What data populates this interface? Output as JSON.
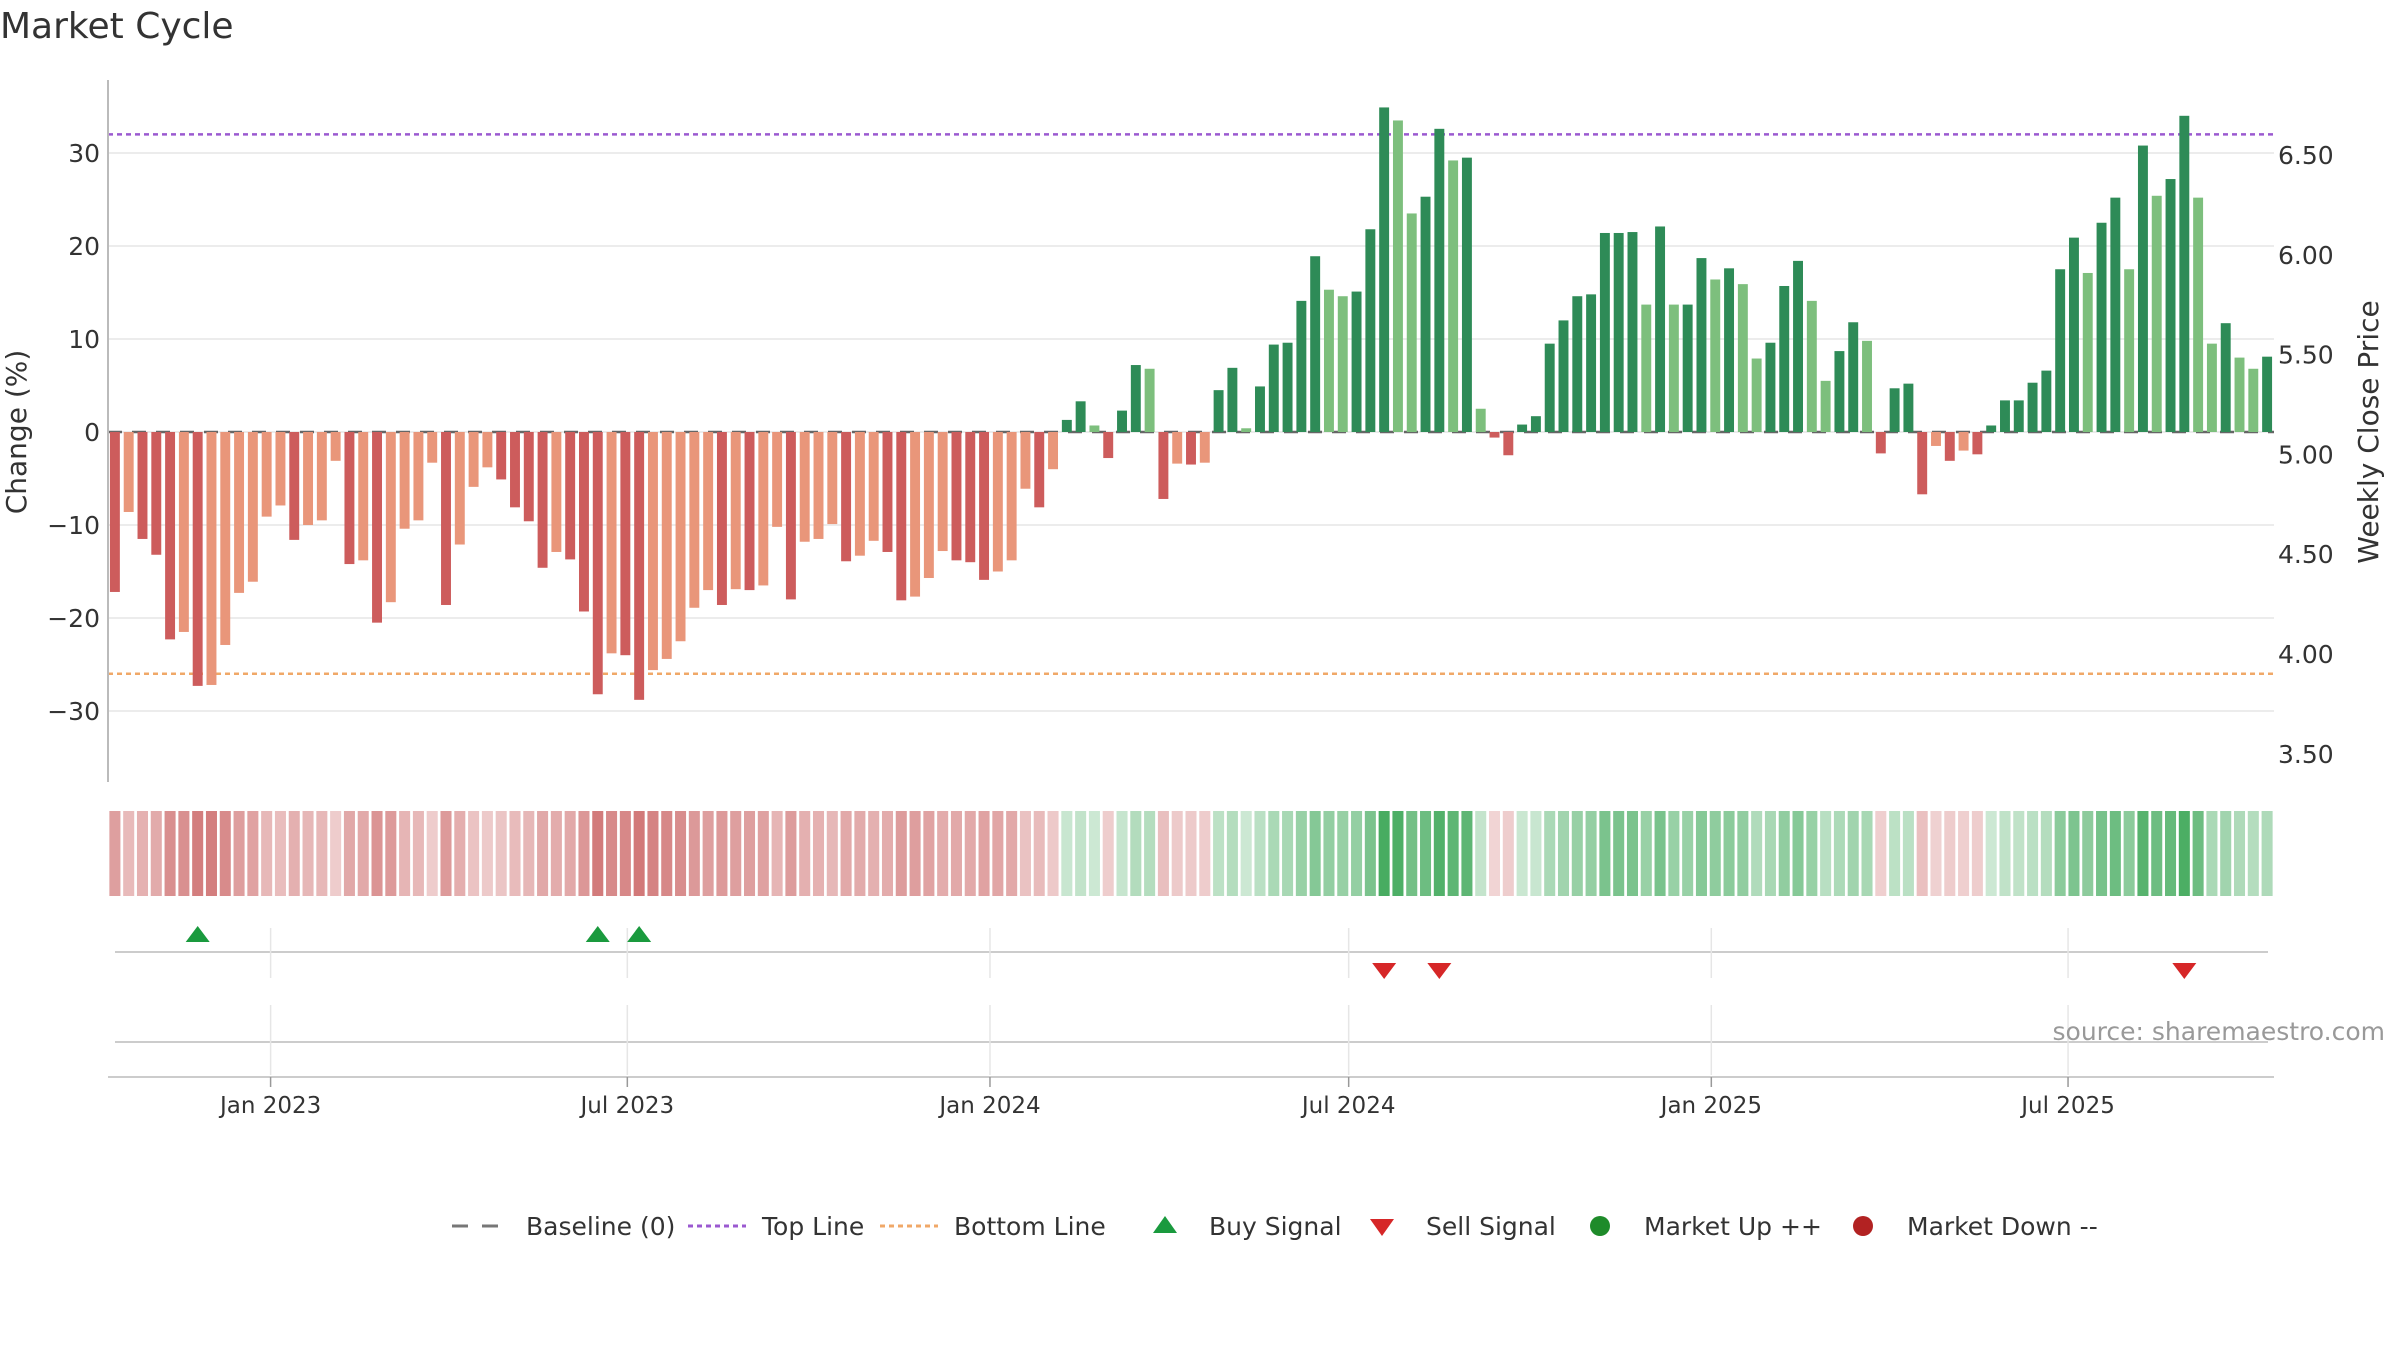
{
  "title": "Market Cycle",
  "source_label": "source: sharemaestro.com",
  "chart_data": {
    "type": "bar",
    "title": "Market Cycle",
    "ylabel_left": "Change (%)",
    "ylabel_right": "Weekly Close Price",
    "ylim_left": [
      -38,
      38
    ],
    "yticks_left": [
      30,
      20,
      10,
      0,
      -10,
      -20,
      -30
    ],
    "ytick_labels_left": [
      "30",
      "20",
      "10",
      "0",
      "−10",
      "−20",
      "−30"
    ],
    "yticks_right": [
      6.5,
      6.0,
      5.5,
      5.0,
      4.5,
      4.0,
      3.5
    ],
    "ytick_labels_right": [
      "6.50",
      "6.00",
      "5.50",
      "5.00",
      "4.50",
      "4.00",
      "3.50"
    ],
    "top_line": 32,
    "bottom_line": -26,
    "start_date": "2022-10-14",
    "interval_days": 7,
    "x_ticks": [
      {
        "date": "2023-01-01",
        "label": "Jan 2023"
      },
      {
        "date": "2023-07-01",
        "label": "Jul 2023"
      },
      {
        "date": "2024-01-01",
        "label": "Jan 2024"
      },
      {
        "date": "2024-07-01",
        "label": "Jul 2024"
      },
      {
        "date": "2025-01-01",
        "label": "Jan 2025"
      },
      {
        "date": "2025-07-01",
        "label": "Jul 2025"
      }
    ],
    "values": [
      -17.2,
      -8.6,
      -11.5,
      -13.2,
      -22.3,
      -21.5,
      -27.3,
      -27.2,
      -22.9,
      -17.3,
      -16.1,
      -9.1,
      -7.9,
      -11.6,
      -10.0,
      -9.5,
      -3.1,
      -14.2,
      -13.8,
      -20.5,
      -18.3,
      -10.4,
      -9.5,
      -3.3,
      -18.6,
      -12.1,
      -5.9,
      -3.8,
      -5.1,
      -8.1,
      -9.6,
      -14.6,
      -12.9,
      -13.7,
      -19.3,
      -28.2,
      -23.8,
      -24.0,
      -28.8,
      -25.6,
      -24.4,
      -22.5,
      -18.9,
      -17.0,
      -18.6,
      -16.9,
      -17.0,
      -16.5,
      -10.2,
      -18.0,
      -11.8,
      -11.5,
      -9.9,
      -13.9,
      -13.3,
      -11.7,
      -12.9,
      -18.1,
      -17.7,
      -15.7,
      -12.8,
      -13.8,
      -14.0,
      -15.9,
      -15.0,
      -13.8,
      -6.1,
      -8.1,
      -4.0,
      1.3,
      3.3,
      0.7,
      -2.8,
      2.3,
      7.2,
      6.8,
      -7.2,
      -3.4,
      -3.5,
      -3.3,
      4.5,
      6.9,
      0.4,
      4.9,
      9.4,
      9.6,
      14.1,
      18.9,
      15.3,
      14.6,
      15.1,
      21.8,
      34.9,
      33.5,
      23.5,
      25.3,
      32.6,
      29.2,
      29.5,
      2.5,
      -0.6,
      -2.5,
      0.8,
      1.7,
      9.5,
      12.0,
      14.6,
      14.8,
      21.4,
      21.4,
      21.5,
      13.7,
      22.1,
      13.7,
      13.7,
      18.7,
      16.4,
      17.6,
      15.9,
      7.9,
      9.6,
      15.7,
      18.4,
      14.1,
      5.5,
      8.7,
      11.8,
      9.8,
      -2.3,
      4.7,
      5.2,
      -6.7,
      -1.5,
      -3.1,
      -2.0,
      -2.4,
      0.7,
      3.4,
      3.4,
      5.3,
      6.6,
      17.5,
      20.9,
      17.1,
      22.5,
      25.2,
      17.5,
      30.8,
      25.4,
      27.2,
      34.0,
      25.2,
      9.5,
      11.7,
      8.0,
      6.8,
      8.1
    ],
    "series": [
      {
        "name": "Baseline (0)",
        "color": "#777777",
        "style": "dashed"
      },
      {
        "name": "Top Line",
        "color": "#9b59d0",
        "style": "dotted"
      },
      {
        "name": "Bottom Line",
        "color": "#f0a868",
        "style": "dotted"
      },
      {
        "name": "Buy Signal",
        "color": "#1a9a3e",
        "marker": "triangle-up"
      },
      {
        "name": "Sell Signal",
        "color": "#d62728",
        "marker": "triangle-down"
      },
      {
        "name": "Market Up ++",
        "color": "#1e8b2a",
        "marker": "circle"
      },
      {
        "name": "Market Down --",
        "color": "#b22222",
        "marker": "circle"
      }
    ],
    "buy_signals": [
      6,
      35,
      38
    ],
    "sell_signals": [
      92,
      96,
      150
    ],
    "colors": {
      "pos_strong": "#2e8b57",
      "pos_weak": "#7dbf7d",
      "neg_strong": "#cd5c5c",
      "neg_weak": "#e9967a",
      "grid": "#e6e6e6",
      "axis": "#bbbbbb",
      "text": "#333333",
      "source": "#999999"
    },
    "grid": true,
    "legend_position": "bottom"
  }
}
